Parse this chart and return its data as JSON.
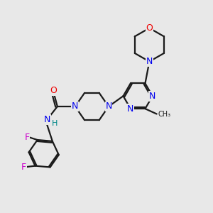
{
  "background_color": "#e8e8e8",
  "bond_color": "#1a1a1a",
  "atom_colors": {
    "N": "#0000ee",
    "O": "#ee0000",
    "F": "#cc00cc",
    "C": "#1a1a1a",
    "H": "#008888"
  },
  "font_size": 9,
  "line_width": 1.6
}
